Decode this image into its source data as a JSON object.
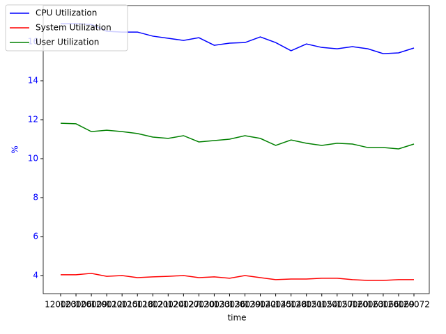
{
  "chart_data": {
    "type": "line",
    "x_label": "time",
    "y_label": "%",
    "categories": [
      "120003",
      "120006",
      "120009",
      "120012",
      "120015",
      "120018",
      "120021",
      "120024",
      "120027",
      "120030",
      "120033",
      "120036",
      "120039",
      "120042",
      "120045",
      "120048",
      "120051",
      "120054",
      "120057",
      "120060",
      "120063",
      "120066",
      "120069",
      "120072"
    ],
    "series": [
      {
        "name": "CPU Utilization",
        "color": "#0000ff",
        "values": [
          16.93,
          16.93,
          16.89,
          16.54,
          16.5,
          16.5,
          16.29,
          16.18,
          16.07,
          16.21,
          15.82,
          15.93,
          15.96,
          16.25,
          15.96,
          15.54,
          15.89,
          15.71,
          15.64,
          15.75,
          15.64,
          15.39,
          15.43,
          15.68
        ]
      },
      {
        "name": "System Utilization",
        "color": "#ff0000",
        "values": [
          4.04,
          4.04,
          4.11,
          3.96,
          4.0,
          3.89,
          3.93,
          3.96,
          4.0,
          3.89,
          3.93,
          3.86,
          4.0,
          3.89,
          3.79,
          3.82,
          3.82,
          3.86,
          3.86,
          3.79,
          3.75,
          3.75,
          3.79,
          3.79
        ]
      },
      {
        "name": "User Utilization",
        "color": "#008000",
        "values": [
          11.82,
          11.79,
          11.39,
          11.46,
          11.39,
          11.29,
          11.11,
          11.04,
          11.18,
          10.86,
          10.93,
          11.0,
          11.18,
          11.04,
          10.68,
          10.96,
          10.79,
          10.68,
          10.79,
          10.75,
          10.57,
          10.57,
          10.5,
          10.75
        ]
      }
    ],
    "ylim": [
      3.07,
      17.86
    ],
    "yticks": [
      4,
      6,
      8,
      10,
      12,
      14,
      16
    ],
    "y_axis_color": "#0000ff",
    "legend": "upper left",
    "grid": false
  }
}
